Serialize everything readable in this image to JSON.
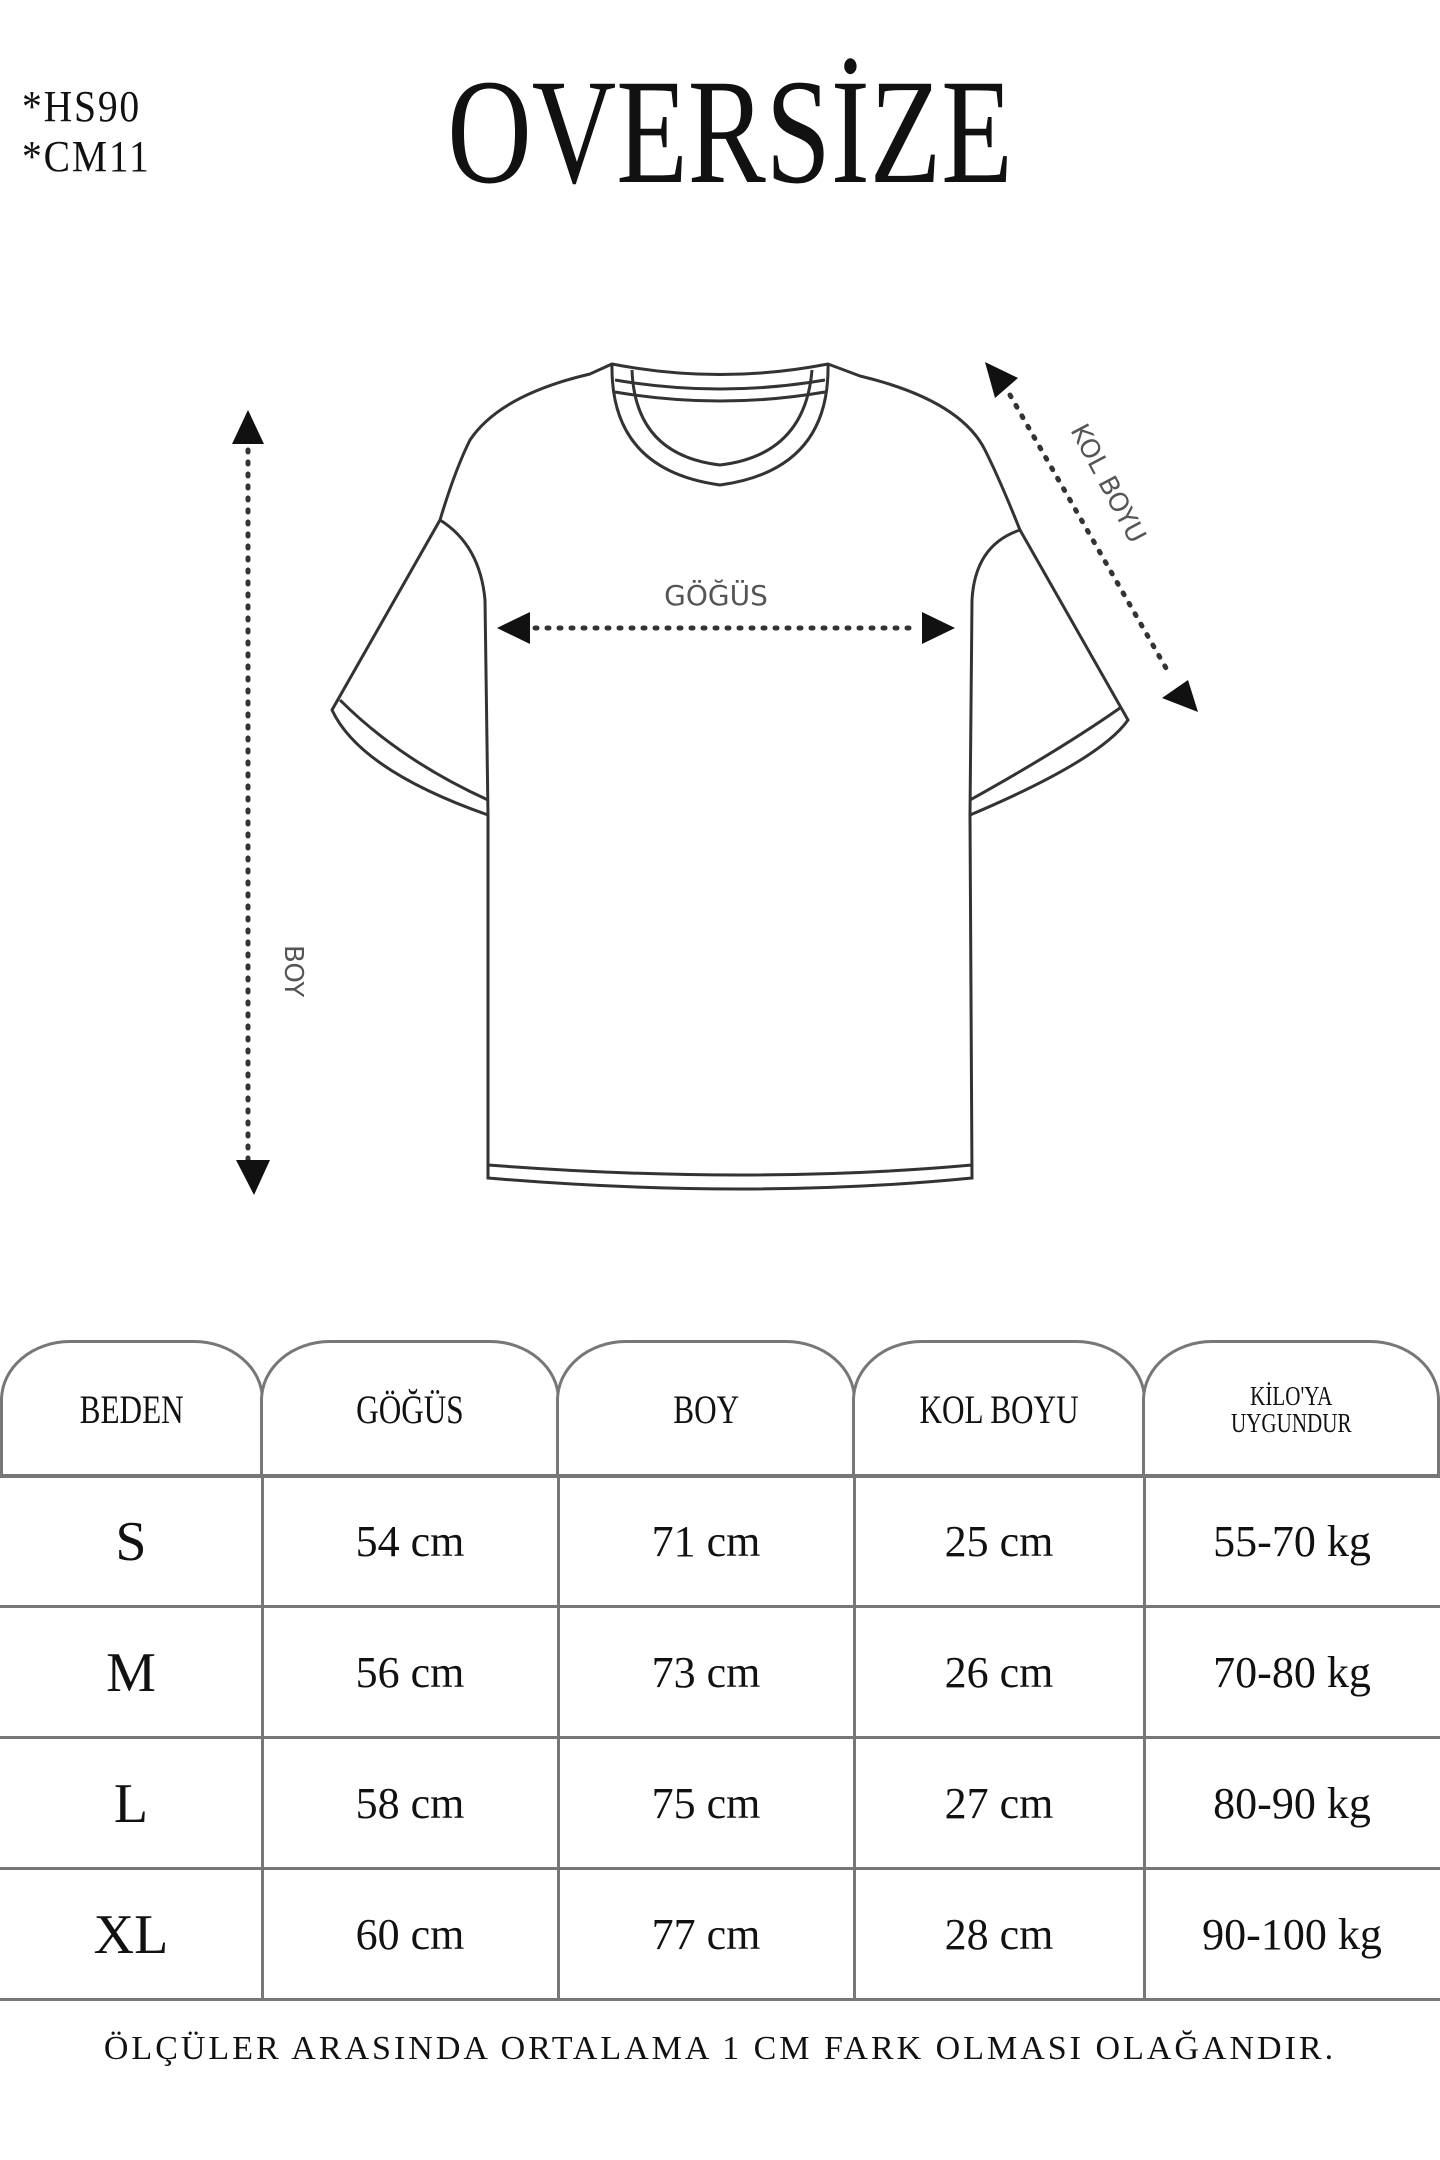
{
  "codes": [
    "*HS90",
    "*CM11"
  ],
  "title": "OVERSİZE",
  "diagram_labels": {
    "chest": "GÖĞÜS",
    "sleeve": "KOL BOYU",
    "length": "BOY"
  },
  "table": {
    "headers": [
      "BEDEN",
      "GÖĞÜS",
      "BOY",
      "KOL BOYU",
      "KİLO'YA UYGUNDUR"
    ],
    "header_kilo_lines": [
      "KİLO'YA",
      "UYGUNDUR"
    ],
    "rows": [
      [
        "S",
        "54 cm",
        "71 cm",
        "25  cm",
        "55-70 kg"
      ],
      [
        "M",
        "56 cm",
        "73 cm",
        "26 cm",
        "70-80 kg"
      ],
      [
        "L",
        "58 cm",
        "75 cm",
        "27 cm",
        "80-90 kg"
      ],
      [
        "XL",
        "60 cm",
        "77 cm",
        "28 cm",
        "90-100 kg"
      ]
    ]
  },
  "footer": "ÖLÇÜLER ARASINDA ORTALAMA 1 CM FARK OLMASI OLAĞANDIR."
}
